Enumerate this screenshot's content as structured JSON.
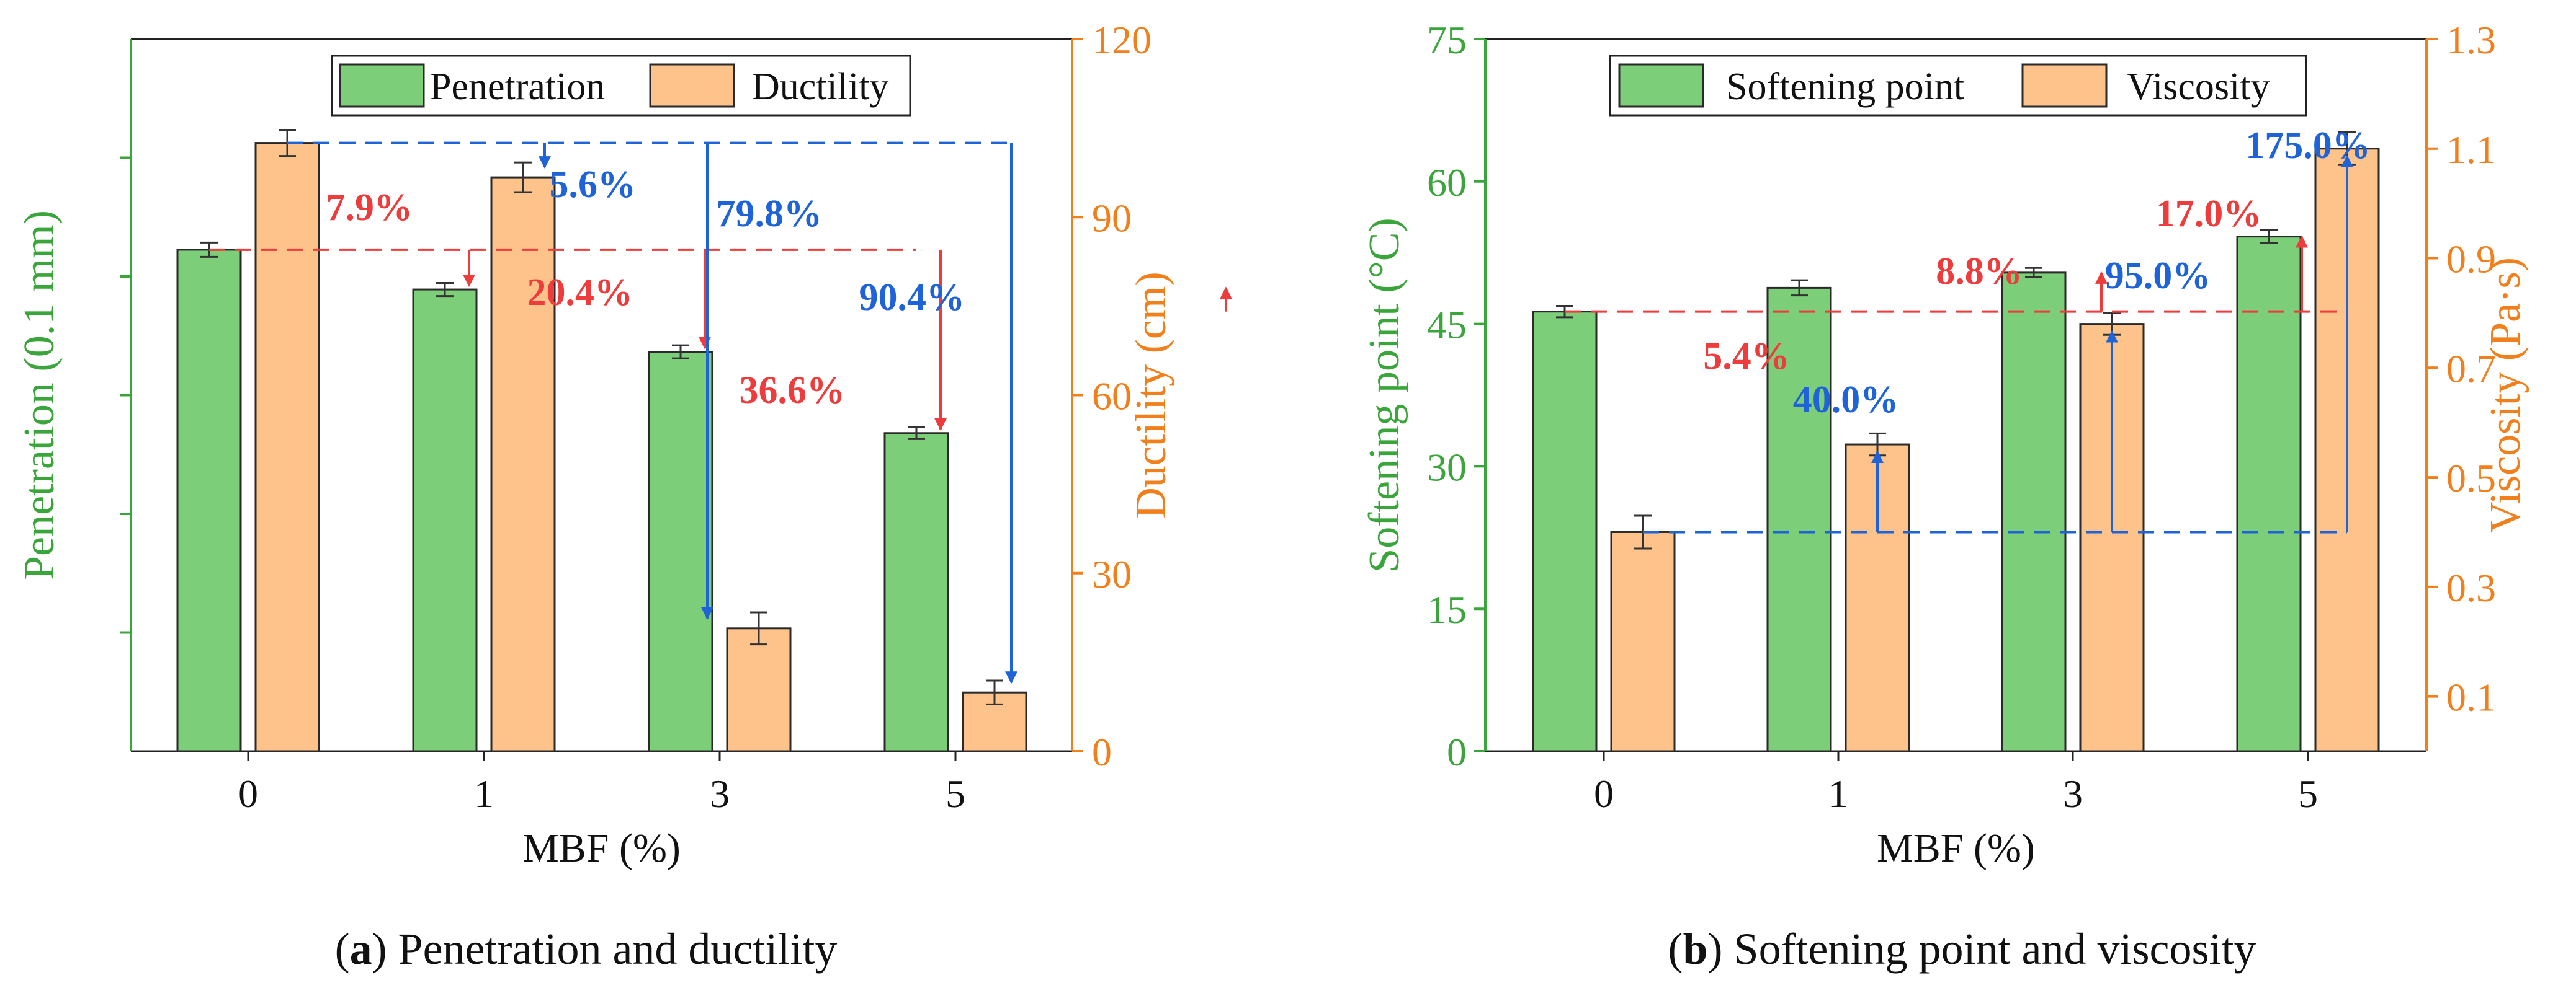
{
  "chart_data": [
    {
      "id": "a",
      "type": "bar",
      "caption": {
        "letter": "a",
        "open": "(",
        "close": ")",
        "text": " Penetration and ductility"
      },
      "xlabel": "MBF (%)",
      "categories": [
        "0",
        "1",
        "3",
        "5"
      ],
      "y_left": {
        "label": "Penetration (0.1 mm)",
        "ylim": [
          0,
          120
        ],
        "ticks": [],
        "color": "#3aa53a"
      },
      "y_right": {
        "label": "Ductility (cm)",
        "ylim": [
          0,
          120
        ],
        "ticks": [
          "0",
          "30",
          "60",
          "90",
          "120"
        ],
        "color": "#f07f1c"
      },
      "series": [
        {
          "name": "Penetration",
          "axis": "left",
          "color": "#7ccf78",
          "values": [
            84.5,
            77.8,
            67.3,
            53.6
          ],
          "errors": [
            1.2,
            1.1,
            1.1,
            1.0
          ]
        },
        {
          "name": "Ductility",
          "axis": "right",
          "color": "#fdc38a",
          "values": [
            102.5,
            96.7,
            20.7,
            9.9
          ],
          "errors": [
            2.2,
            2.5,
            2.7,
            2.0
          ]
        }
      ],
      "reference_lines": [
        {
          "series": "Penetration",
          "color": "#ee3b3b",
          "from_category": 0,
          "to_category": 3
        },
        {
          "series": "Ductility",
          "color": "#1f63d8",
          "from_category": 0,
          "to_category": 3
        }
      ],
      "annotations": [
        {
          "text": "7.9%",
          "series": "Penetration",
          "category": 1,
          "color": "#ee3b3b"
        },
        {
          "text": "20.4%",
          "series": "Penetration",
          "category": 2,
          "color": "#ee3b3b"
        },
        {
          "text": "36.6%",
          "series": "Penetration",
          "category": 3,
          "color": "#ee3b3b"
        },
        {
          "text": "5.6%",
          "series": "Ductility",
          "category": 1,
          "color": "#1f63d8"
        },
        {
          "text": "79.8%",
          "series": "Ductility",
          "category": 2,
          "color": "#1f63d8"
        },
        {
          "text": "90.4%",
          "series": "Ductility",
          "category": 3,
          "color": "#1f63d8"
        }
      ],
      "legend": {
        "placement": "top-center",
        "entries": [
          "Penetration",
          "Ductility"
        ]
      }
    },
    {
      "id": "b",
      "type": "bar",
      "caption": {
        "letter": "b",
        "open": "(",
        "close": ")",
        "text": " Softening point and viscosity"
      },
      "xlabel": "MBF (%)",
      "categories": [
        "0",
        "1",
        "3",
        "5"
      ],
      "y_left": {
        "label": "Softening point (°C)",
        "ylim": [
          0,
          75
        ],
        "ticks": [
          "0",
          "15",
          "30",
          "45",
          "60",
          "75"
        ],
        "color": "#3aa53a"
      },
      "y_right": {
        "label": "Viscosity (Pa·s)",
        "ylim": [
          0,
          1.3
        ],
        "ticks": [
          "0.1",
          "0.3",
          "0.5",
          "0.7",
          "0.9",
          "1.1",
          "1.3"
        ],
        "color": "#f07f1c"
      },
      "series": [
        {
          "name": "Softening point",
          "axis": "left",
          "color": "#7ccf78",
          "values": [
            46.3,
            48.8,
            50.4,
            54.2
          ],
          "errors": [
            0.6,
            0.8,
            0.5,
            0.7
          ]
        },
        {
          "name": "Viscosity",
          "axis": "right",
          "color": "#fdc38a",
          "values": [
            0.4,
            0.56,
            0.78,
            1.1
          ],
          "errors": [
            0.03,
            0.02,
            0.02,
            0.03
          ]
        }
      ],
      "reference_lines": [
        {
          "series": "Softening point",
          "color": "#ee3b3b",
          "from_category": 0,
          "to_category": 3
        },
        {
          "series": "Viscosity",
          "color": "#1f63d8",
          "from_category": 0,
          "to_category": 3
        }
      ],
      "annotations": [
        {
          "text": "5.4%",
          "series": "Softening point",
          "category": 1,
          "color": "#ee3b3b"
        },
        {
          "text": "8.8%",
          "series": "Softening point",
          "category": 2,
          "color": "#ee3b3b"
        },
        {
          "text": "17.0%",
          "series": "Softening point",
          "category": 3,
          "color": "#ee3b3b"
        },
        {
          "text": "40.0%",
          "series": "Viscosity",
          "category": 1,
          "color": "#1f63d8"
        },
        {
          "text": "95.0%",
          "series": "Viscosity",
          "category": 2,
          "color": "#1f63d8"
        },
        {
          "text": "175.0%",
          "series": "Viscosity",
          "category": 3,
          "color": "#1f63d8"
        }
      ],
      "legend": {
        "placement": "top-center",
        "entries": [
          "Softening point",
          "Viscosity"
        ]
      }
    }
  ]
}
